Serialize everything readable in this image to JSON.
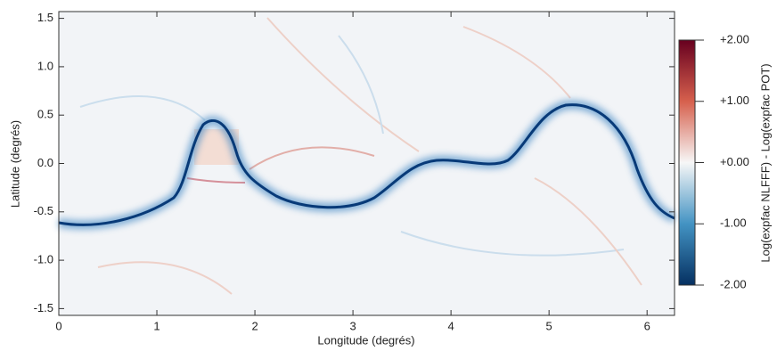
{
  "chart_data": {
    "type": "heatmap",
    "x_label": "Longitude (degrés)",
    "y_label": "Latitude (degrés)",
    "colorbar_label": "Log(expfac NLFFF) - Log(expfac POT)",
    "xlim": [
      0,
      6.28
    ],
    "ylim": [
      -1.57,
      1.57
    ],
    "xticks": [
      0,
      1,
      2,
      3,
      4,
      5,
      6
    ],
    "yticks": [
      -1.5,
      {
        "value": -1.0,
        "label": "-1.0"
      },
      -0.5,
      {
        "value": 0.0,
        "label": "0.0"
      },
      0.5,
      {
        "value": 1.0,
        "label": "1.0"
      },
      1.5
    ],
    "clim": [
      -2,
      2
    ],
    "cticks": [
      {
        "value": 2,
        "label": "+2.00"
      },
      {
        "value": 1,
        "label": "+1.00"
      },
      {
        "value": 0,
        "label": "+0.00"
      },
      {
        "value": -1,
        "label": "-1.00"
      },
      {
        "value": -2,
        "label": "-2.00"
      }
    ],
    "colormap": [
      "#053061",
      "#4393c3",
      "#f7f7f7",
      "#d6604d",
      "#67001f"
    ]
  }
}
